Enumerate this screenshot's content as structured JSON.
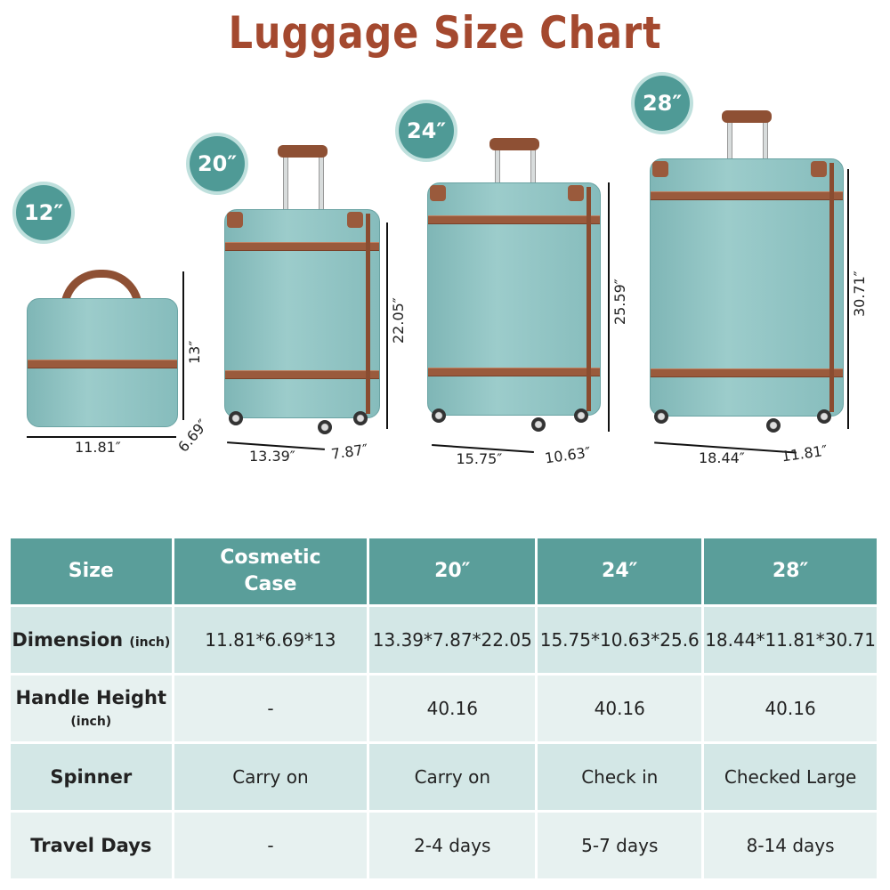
{
  "title": "Luggage Size Chart",
  "colors": {
    "title": "#a4492f",
    "teal": "#5a9e9a",
    "row_dark": "#d3e7e6",
    "row_light": "#e7f1f0",
    "strap": "#9a5a3c"
  },
  "luggage": [
    {
      "badge": "12″",
      "height": "13″",
      "width": "11.81″",
      "depth": "6.69″"
    },
    {
      "badge": "20″",
      "height": "22.05″",
      "width": "13.39″",
      "depth": "7.87″"
    },
    {
      "badge": "24″",
      "height": "25.59″",
      "width": "15.75″",
      "depth": "10.63″"
    },
    {
      "badge": "28″",
      "height": "30.71″",
      "width": "18.44″",
      "depth": "11.81″"
    }
  ],
  "table": {
    "headers": [
      "Size",
      "Cosmetic Case",
      "20″",
      "24″",
      "28″"
    ],
    "rows": [
      {
        "label": "Dimension",
        "unit": "(inch)",
        "cells": [
          "11.81*6.69*13",
          "13.39*7.87*22.05",
          "15.75*10.63*25.6",
          "18.44*11.81*30.71"
        ]
      },
      {
        "label": "Handle Height",
        "unit": "(inch)",
        "cells": [
          "-",
          "40.16",
          "40.16",
          "40.16"
        ]
      },
      {
        "label": "Spinner",
        "unit": "",
        "cells": [
          "Carry on",
          "Carry on",
          "Check in",
          "Checked Large"
        ]
      },
      {
        "label": "Travel Days",
        "unit": "",
        "cells": [
          "-",
          "2-4 days",
          "5-7 days",
          "8-14 days"
        ]
      }
    ]
  }
}
